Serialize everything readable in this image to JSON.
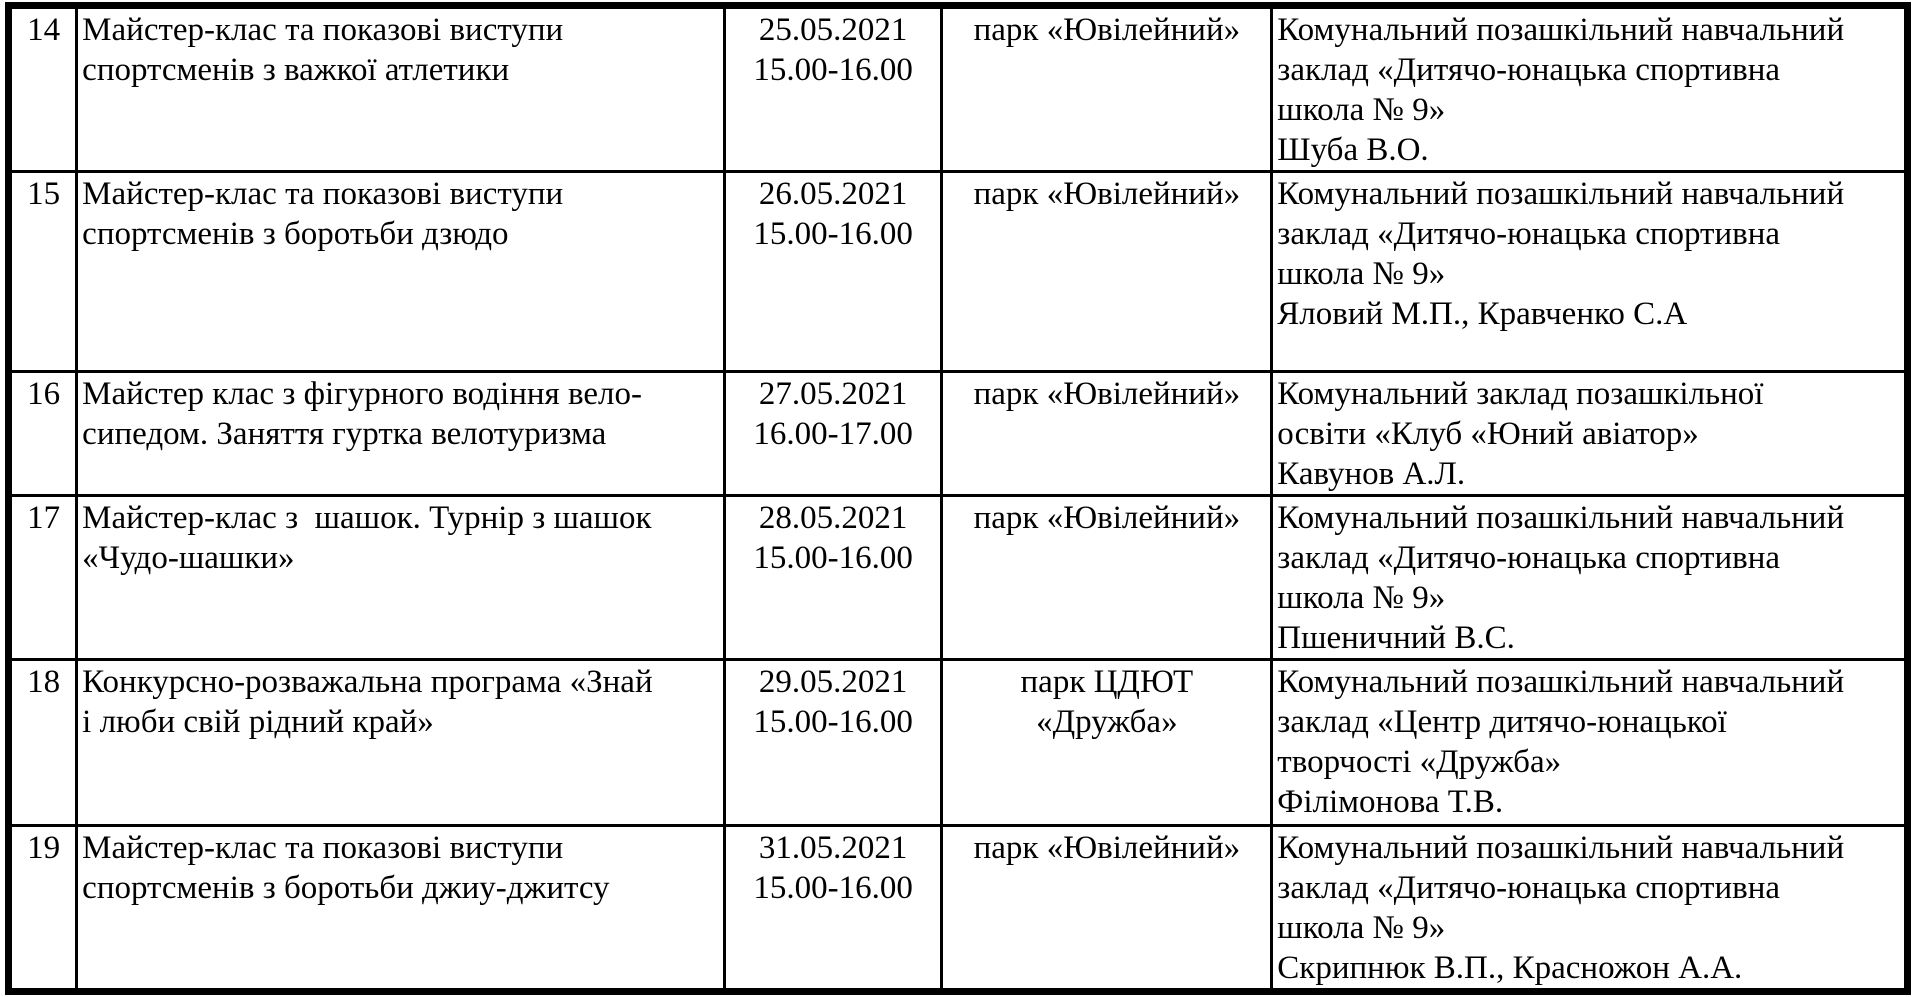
{
  "colors": {
    "text": "#000000",
    "border": "#000000",
    "background": "#ffffff"
  },
  "table": {
    "rows": [
      {
        "number": "14",
        "event": "Майстер-клас та показові виступи\nспортсменів з важкої атлетики",
        "datetime": "25.05.2021\n15.00-16.00",
        "location": "парк «Ювілейний»",
        "organizer": "Комунальний позашкільний навчальний\nзаклад «Дитячо-юнацька спортивна\nшкола № 9»\nШуба В.О."
      },
      {
        "number": "15",
        "event": "Майстер-клас та показові виступи\nспортсменів з боротьби дзюдо",
        "datetime": "26.05.2021\n15.00-16.00",
        "location": "парк «Ювілейний»",
        "organizer": "Комунальний позашкільний навчальний\nзаклад «Дитячо-юнацька спортивна\nшкола № 9»\nЯловий М.П., Кравченко С.А"
      },
      {
        "number": "16",
        "event": "Майстер клас з фігурного водіння вело-\nсипедом. Заняття гуртка велотуризма",
        "datetime": "27.05.2021\n16.00-17.00",
        "location": "парк «Ювілейний»",
        "organizer": "Комунальний заклад позашкільної\nосвіти «Клуб «Юний авіатор»\nКавунов А.Л."
      },
      {
        "number": "17",
        "event": "Майстер-клас з  шашок. Турнір з шашок\n«Чудо-шашки»",
        "datetime": "28.05.2021\n15.00-16.00",
        "location": "парк «Ювілейний»",
        "organizer": "Комунальний позашкільний навчальний\nзаклад «Дитячо-юнацька спортивна\nшкола № 9»\nПшеничний В.С."
      },
      {
        "number": "18",
        "event": "Конкурсно-розважальна програма «Знай\nі люби свій рідний край»",
        "datetime": "29.05.2021\n15.00-16.00",
        "location": "парк ЦДЮТ\n«Дружба»",
        "organizer": "Комунальний позашкільний навчальний\nзаклад «Центр дитячо-юнацької\nтворчості «Дружба»\nФілімонова Т.В."
      },
      {
        "number": "19",
        "event": "Майстер-клас та показові виступи\nспортсменів з боротьби джиу-джитсу",
        "datetime": "31.05.2021\n15.00-16.00",
        "location": "парк «Ювілейний»",
        "organizer": "Комунальний позашкільний навчальний\nзаклад «Дитячо-юнацька спортивна\nшкола № 9»\nСкрипнюк В.П., Красножон А.А."
      }
    ]
  }
}
